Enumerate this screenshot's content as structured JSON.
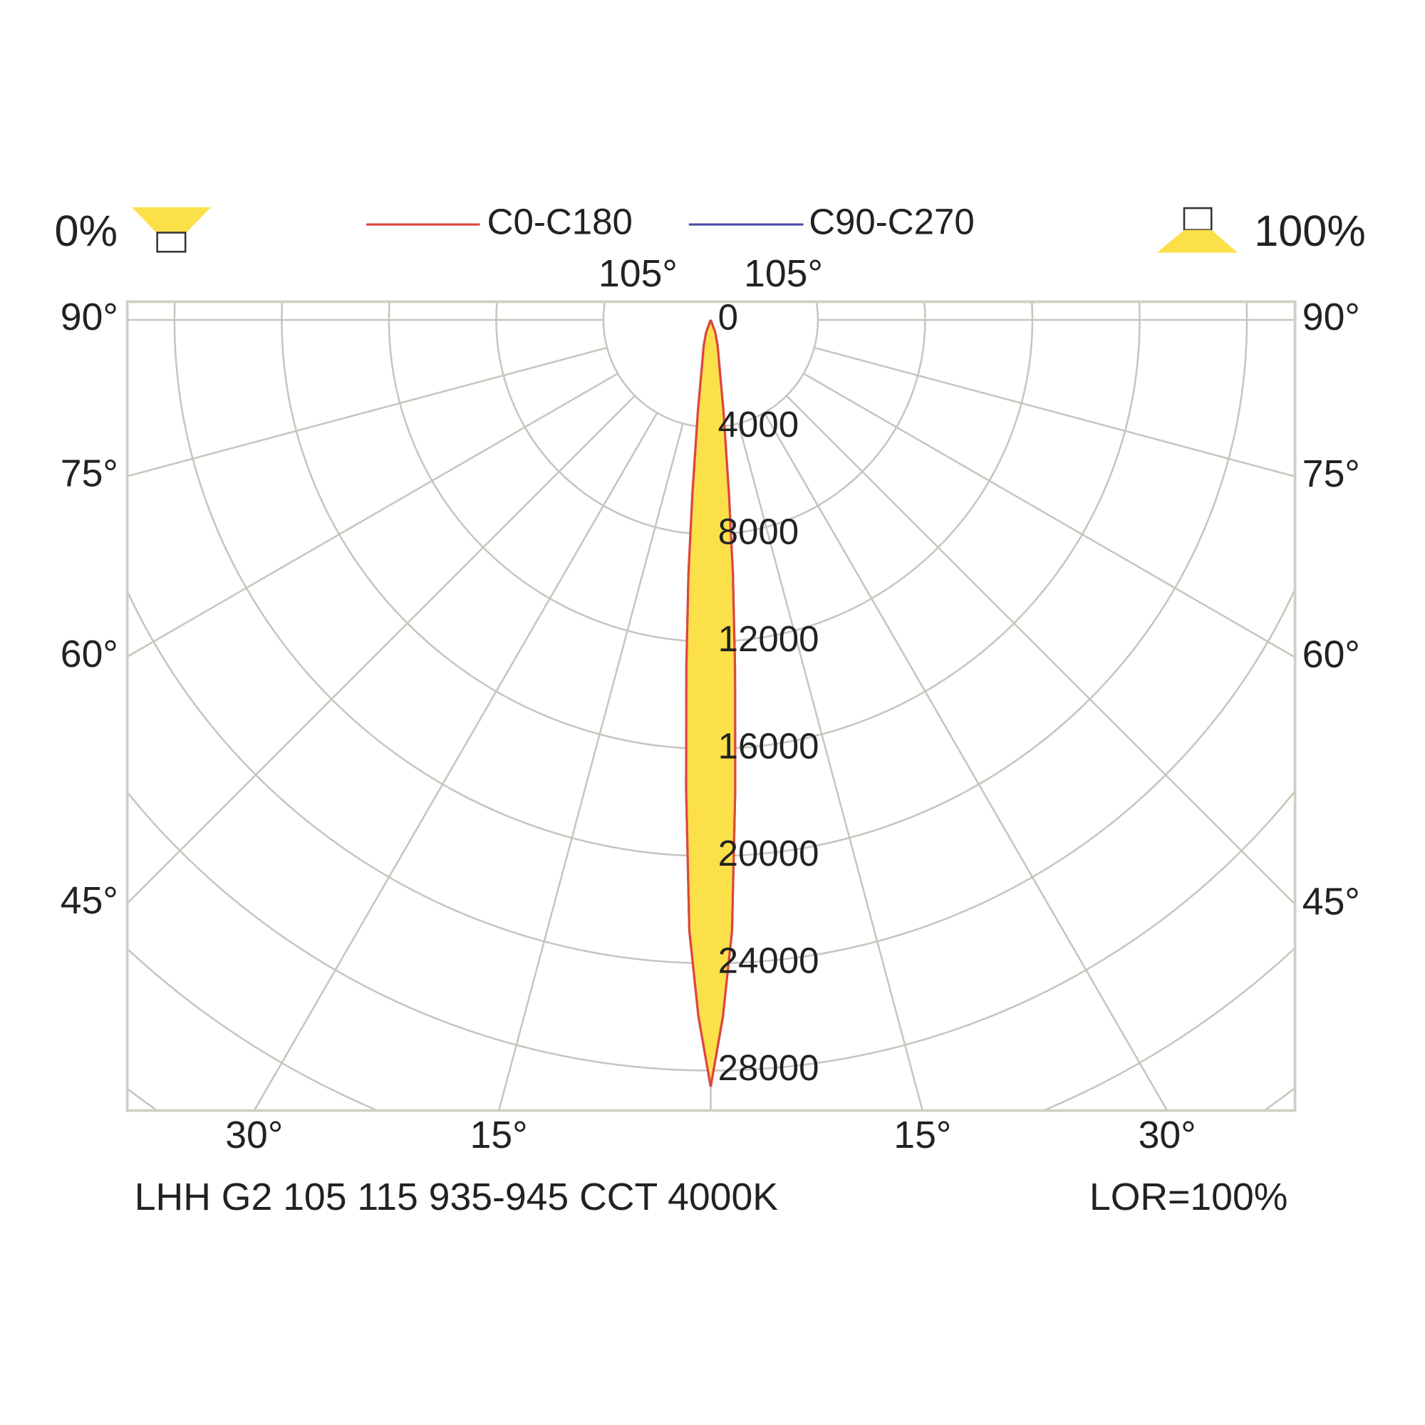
{
  "chart_data": {
    "type": "polar-light-distribution",
    "legend_upward_label": "0%",
    "legend_downward_label": "100%",
    "footer_left": "LHH G2 105 115 935-945 CCT 4000K",
    "footer_right": "LOR=100%",
    "angles": [
      0,
      1,
      2,
      3,
      4,
      5,
      6,
      8,
      10,
      15,
      20,
      30
    ],
    "series": [
      {
        "name": "C0-C180",
        "color": "#e0453f",
        "values": [
          28600,
          26000,
          22800,
          17500,
          13000,
          9500,
          6500,
          3400,
          2000,
          1000,
          500,
          0
        ]
      },
      {
        "name": "C90-C270",
        "color": "#4a4aa8",
        "values": [
          28600,
          26000,
          22800,
          17500,
          13000,
          9500,
          6500,
          3400,
          2000,
          1000,
          500,
          0
        ]
      }
    ],
    "fill_color": "#fbe04a",
    "rlim": [
      0,
      28000
    ],
    "rticks": [
      0,
      4000,
      8000,
      12000,
      16000,
      20000,
      24000,
      28000
    ],
    "angle_ticks": [
      {
        "value": 15,
        "label": "15°"
      },
      {
        "value": 30,
        "label": "30°"
      },
      {
        "value": 45,
        "label": "45°"
      },
      {
        "value": 60,
        "label": "60°"
      },
      {
        "value": 75,
        "label": "75°"
      },
      {
        "value": 90,
        "label": "90°"
      },
      {
        "value": 105,
        "label": "105°"
      }
    ],
    "grid": true
  }
}
